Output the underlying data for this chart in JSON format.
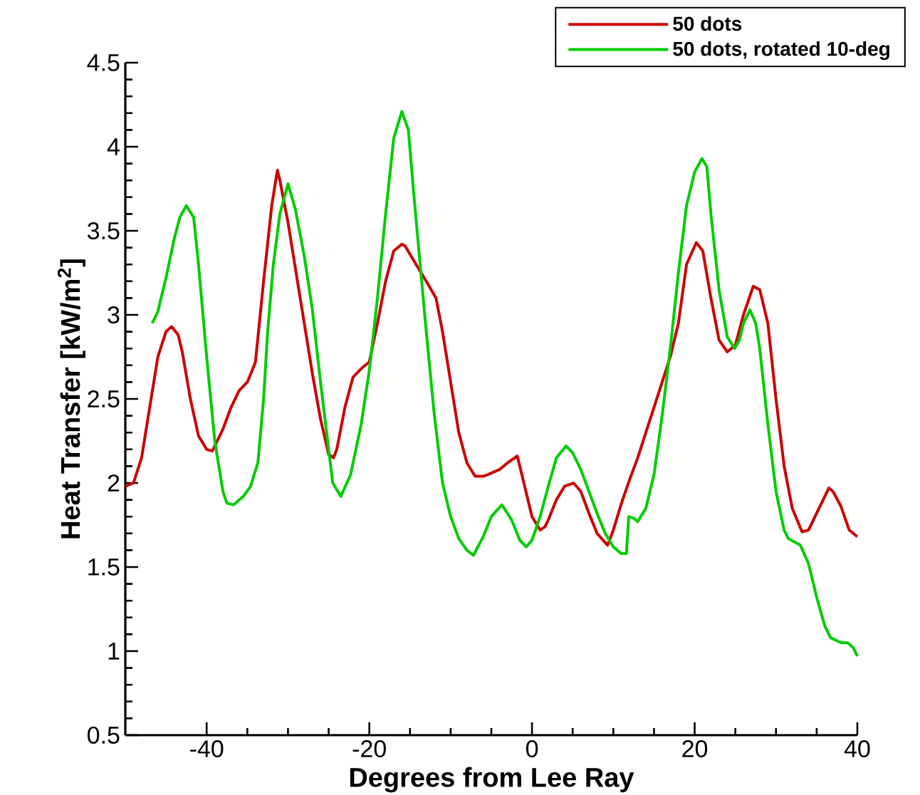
{
  "chart_data": {
    "type": "line",
    "xlabel": "Degrees from Lee Ray",
    "ylabel": "Heat Transfer [kW/m$^{2}$]",
    "xlim": [
      -50,
      40
    ],
    "xticks": [
      -40,
      -20,
      0,
      20,
      40
    ],
    "ylim": [
      0.5,
      4.5
    ],
    "yticks": [
      0.5,
      1,
      1.5,
      2,
      2.5,
      3,
      3.5,
      4,
      4.5
    ],
    "legend": "top right",
    "grid": false,
    "marker": "none",
    "line_style": "solid",
    "series": [
      {
        "name": "50 dots",
        "color": "#cc0000",
        "x": [
          -50,
          -49,
          -48,
          -47,
          -46,
          -45,
          -44.3,
          -43.5,
          -43,
          -42,
          -41,
          -40,
          -39.3,
          -38,
          -37,
          -36,
          -35,
          -34.4,
          -34,
          -33,
          -32,
          -31.3,
          -31,
          -30,
          -29,
          -28,
          -27,
          -26,
          -25,
          -24.4,
          -24,
          -23,
          -22,
          -21,
          -20,
          -19,
          -18,
          -17,
          -16,
          -15.6,
          -15,
          -14,
          -13,
          -11.8,
          -11,
          -10,
          -9,
          -8,
          -7,
          -6,
          -5.4,
          -4,
          -3,
          -1.8,
          -1,
          0,
          1,
          1.6,
          2,
          3,
          4,
          5.1,
          6,
          7,
          8,
          9.3,
          10,
          11,
          12,
          13,
          14,
          15,
          16,
          17,
          18,
          19,
          20.2,
          21,
          22,
          23,
          24,
          25,
          26,
          27.2,
          28,
          29,
          30,
          31,
          32,
          33.2,
          34,
          35,
          36.5,
          37,
          38,
          39,
          40
        ],
        "values": [
          1.98,
          2.0,
          2.15,
          2.45,
          2.75,
          2.9,
          2.93,
          2.88,
          2.78,
          2.5,
          2.28,
          2.2,
          2.19,
          2.32,
          2.45,
          2.55,
          2.6,
          2.67,
          2.72,
          3.2,
          3.65,
          3.86,
          3.8,
          3.55,
          3.25,
          2.95,
          2.65,
          2.38,
          2.17,
          2.15,
          2.2,
          2.45,
          2.63,
          2.68,
          2.72,
          2.95,
          3.2,
          3.38,
          3.42,
          3.41,
          3.36,
          3.28,
          3.2,
          3.1,
          2.9,
          2.6,
          2.3,
          2.12,
          2.04,
          2.04,
          2.05,
          2.08,
          2.12,
          2.16,
          2.0,
          1.8,
          1.72,
          1.74,
          1.78,
          1.9,
          1.98,
          2.0,
          1.95,
          1.82,
          1.7,
          1.63,
          1.72,
          1.88,
          2.02,
          2.15,
          2.3,
          2.45,
          2.6,
          2.75,
          2.95,
          3.3,
          3.43,
          3.38,
          3.1,
          2.85,
          2.78,
          2.82,
          3.0,
          3.17,
          3.15,
          2.95,
          2.5,
          2.1,
          1.85,
          1.71,
          1.72,
          1.82,
          1.97,
          1.95,
          1.86,
          1.72,
          1.68
        ]
      },
      {
        "name": "50 dots, rotated 10-deg",
        "color": "#00cc00",
        "x": [
          -46.7,
          -46,
          -45,
          -44,
          -43.3,
          -42.5,
          -41.6,
          -41,
          -40,
          -39,
          -38,
          -37.5,
          -36.7,
          -35.5,
          -34.6,
          -33.7,
          -33,
          -32.5,
          -31.8,
          -31,
          -30,
          -29.1,
          -28,
          -27,
          -26,
          -25,
          -24.5,
          -23.5,
          -22.3,
          -21,
          -20,
          -19,
          -18,
          -17,
          -16,
          -15.2,
          -14.5,
          -13,
          -12,
          -11,
          -10,
          -9,
          -8,
          -7.2,
          -6,
          -5,
          -3.7,
          -2.5,
          -1.5,
          -0.7,
          0,
          1,
          2,
          3,
          4.2,
          5,
          6,
          7,
          8,
          9,
          10,
          11,
          11.6,
          11.9,
          12.5,
          13,
          14,
          15,
          16,
          17,
          18,
          19,
          20,
          20.9,
          21.5,
          22,
          23,
          24,
          24.9,
          25.5,
          26,
          26.8,
          27.5,
          28,
          29,
          30,
          31,
          31.5,
          33,
          34,
          35,
          36,
          36.7,
          38,
          38.8,
          39.5,
          40
        ],
        "values": [
          2.95,
          3.02,
          3.22,
          3.45,
          3.58,
          3.65,
          3.58,
          3.3,
          2.75,
          2.25,
          1.95,
          1.88,
          1.87,
          1.92,
          1.98,
          2.12,
          2.5,
          2.9,
          3.3,
          3.6,
          3.78,
          3.63,
          3.35,
          3.03,
          2.6,
          2.2,
          2.0,
          1.92,
          2.05,
          2.35,
          2.67,
          3.1,
          3.6,
          4.05,
          4.21,
          4.1,
          3.7,
          2.9,
          2.4,
          2.0,
          1.8,
          1.67,
          1.6,
          1.57,
          1.68,
          1.8,
          1.87,
          1.78,
          1.66,
          1.62,
          1.66,
          1.8,
          1.98,
          2.15,
          2.22,
          2.18,
          2.08,
          1.95,
          1.82,
          1.7,
          1.62,
          1.58,
          1.58,
          1.8,
          1.79,
          1.77,
          1.85,
          2.05,
          2.4,
          2.8,
          3.25,
          3.65,
          3.85,
          3.93,
          3.88,
          3.6,
          3.15,
          2.87,
          2.8,
          2.85,
          2.95,
          3.03,
          2.95,
          2.8,
          2.35,
          1.95,
          1.72,
          1.67,
          1.63,
          1.52,
          1.32,
          1.15,
          1.08,
          1.05,
          1.05,
          1.02,
          0.97
        ]
      }
    ]
  }
}
